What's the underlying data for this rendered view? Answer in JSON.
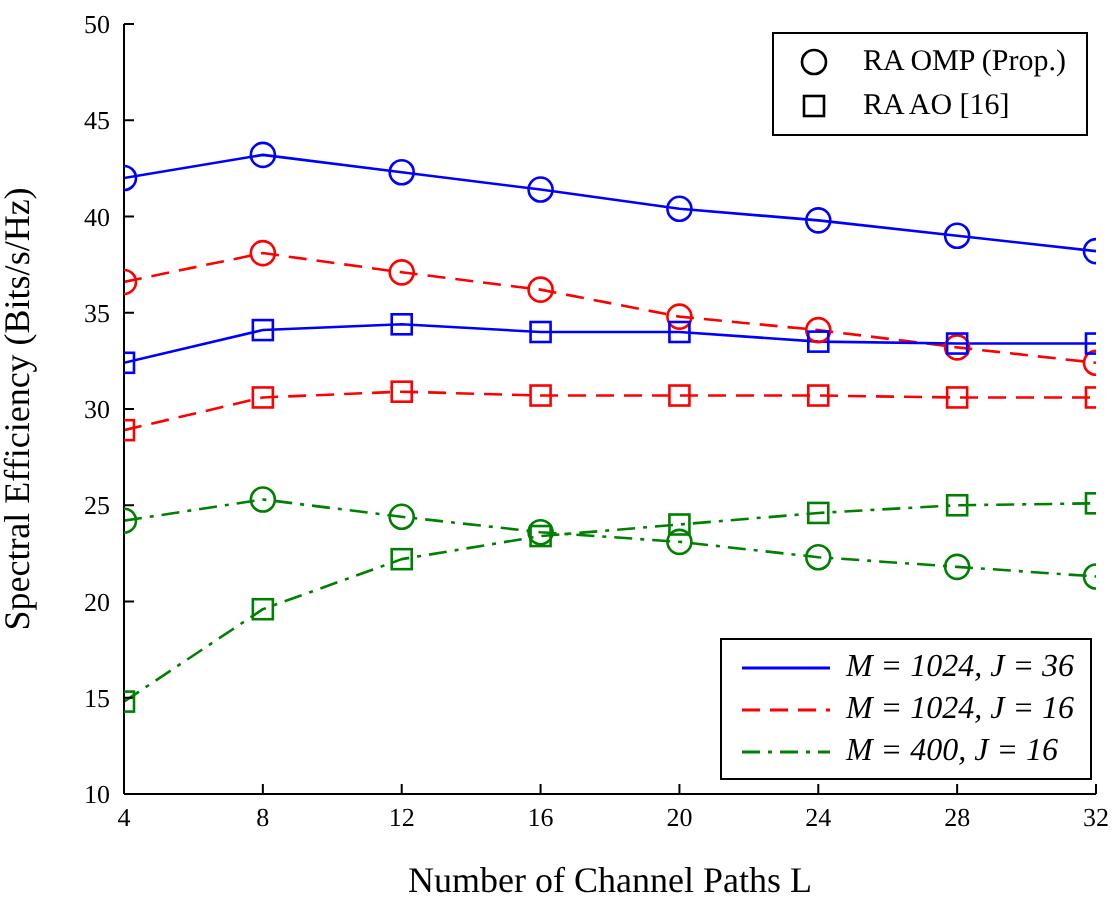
{
  "chart_data": {
    "type": "line",
    "xlabel": "Number of Channel Paths L",
    "ylabel": "Spectral Efficiency (Bits/s/Hz)",
    "x": [
      4,
      8,
      12,
      16,
      20,
      24,
      28,
      32
    ],
    "xlim": [
      4,
      32
    ],
    "xticks": [
      4,
      8,
      12,
      16,
      20,
      24,
      28,
      32
    ],
    "ylim": [
      10,
      50
    ],
    "yticks": [
      10,
      15,
      20,
      25,
      30,
      35,
      40,
      45,
      50
    ],
    "grid": false,
    "legend": "bottom right",
    "annotations": [
      "RA OMP (Prop.)",
      "RA AO [16]"
    ],
    "series": [
      {
        "name": "M = 1024, J = 36",
        "color": "#0000ff",
        "line_style": "solid",
        "marker": "circle",
        "values": [
          42.0,
          43.2,
          42.3,
          41.4,
          40.4,
          39.8,
          39.0,
          38.2
        ]
      },
      {
        "name": "M = 1024, J = 16",
        "color": "#ff0000",
        "line_style": "dashed",
        "marker": "circle",
        "values": [
          36.6,
          38.1,
          37.1,
          36.2,
          34.8,
          34.1,
          33.2,
          32.4
        ]
      },
      {
        "name": "M = 400, J = 16",
        "color": "#008000",
        "line_style": "dashdot",
        "marker": "circle",
        "values": [
          24.2,
          25.3,
          24.4,
          23.6,
          23.1,
          22.3,
          21.8,
          21.3
        ]
      },
      {
        "color": "#0000ff",
        "line_style": "solid",
        "marker": "square",
        "values": [
          32.4,
          34.1,
          34.4,
          34.0,
          34.0,
          33.5,
          33.4,
          33.4
        ]
      },
      {
        "color": "#ff0000",
        "line_style": "dashed",
        "marker": "square",
        "values": [
          28.9,
          30.6,
          30.9,
          30.7,
          30.7,
          30.7,
          30.6,
          30.6
        ]
      },
      {
        "color": "#008000",
        "line_style": "dashdot",
        "marker": "square",
        "values": [
          14.8,
          19.6,
          22.2,
          23.4,
          24.0,
          24.6,
          25.0,
          25.1
        ]
      }
    ]
  }
}
